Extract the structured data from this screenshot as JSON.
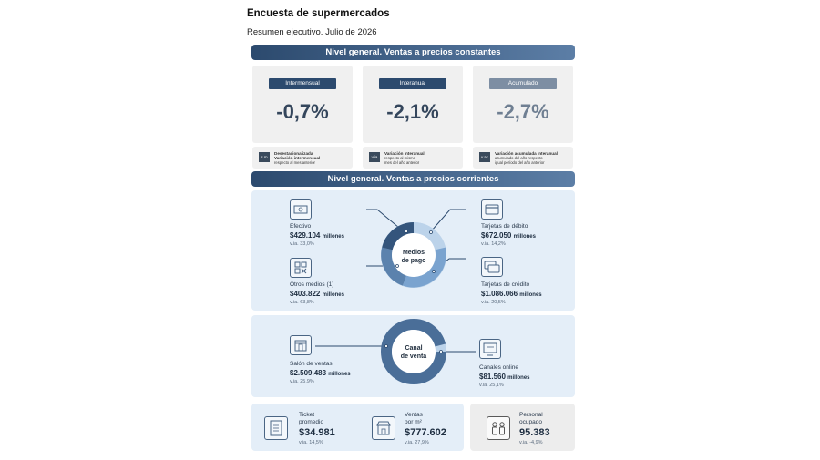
{
  "header": {
    "title": "Encuesta de supermercados",
    "subtitle": "Resumen ejecutivo. Julio de 2026"
  },
  "section_constant": {
    "title": "Nivel general. Ventas a precios constantes",
    "cards": [
      {
        "tag": "Intermensual",
        "value": "-0,7%"
      },
      {
        "tag": "Interanual",
        "value": "-2,1%"
      },
      {
        "tag": "Acumulado",
        "value": "-2,7%"
      }
    ],
    "legends": [
      {
        "code": "s.m",
        "title": "Desestacionalizada",
        "line2": "Variación intermensual",
        "line3": "respecto al mes anterior"
      },
      {
        "code": "v.ia",
        "title": "Variación interanual",
        "line2": "respecto al mismo",
        "line3": "mes del año anterior"
      },
      {
        "code": "v.ac",
        "title": "Variación acumulada interanual",
        "line2": "acumulado del año respecto",
        "line3": "igual período del año anterior"
      }
    ]
  },
  "section_current": {
    "title": "Nivel general. Ventas a precios corrientes",
    "payment": {
      "center": [
        "Medios",
        "de pago"
      ],
      "items": [
        {
          "label": "Efectivo",
          "value": "$429.104",
          "unit": "millones",
          "var": "v.ia. 33,0%"
        },
        {
          "label": "Otros medios (1)",
          "value": "$403.822",
          "unit": "millones",
          "var": "v.ia. 63,8%"
        },
        {
          "label": "Tarjetas de débito",
          "value": "$672.050",
          "unit": "millones",
          "var": "v.ia. 14,2%"
        },
        {
          "label": "Tarjetas de crédito",
          "value": "$1.086.066",
          "unit": "millones",
          "var": "v.ia. 20,5%"
        }
      ]
    },
    "channel": {
      "center": [
        "Canal",
        "de venta"
      ],
      "items": [
        {
          "label": "Salón de ventas",
          "value": "$2.509.483",
          "unit": "millones",
          "var": "v.ia. 25,9%"
        },
        {
          "label": "Canales online",
          "value": "$81.560",
          "unit": "millones",
          "var": "v.ia. 25,1%"
        }
      ]
    },
    "bottom": [
      {
        "label1": "Ticket",
        "label2": "promedio",
        "value": "$34.981",
        "var": "v.ia. 14,5%"
      },
      {
        "label1": "Ventas",
        "label2": "por m²",
        "value": "$777.602",
        "var": "v.ia. 27,9%"
      },
      {
        "label1": "Personal",
        "label2": "ocupado",
        "value": "95.383",
        "var": "v.ia. -4,9%"
      }
    ]
  },
  "colors": {
    "navy": "#2c4a6e",
    "panel": "#e4eef8",
    "ring_dark": "#4a6e98",
    "ring_mid": "#7aa3cf",
    "ring_light": "#bcd3ea"
  }
}
